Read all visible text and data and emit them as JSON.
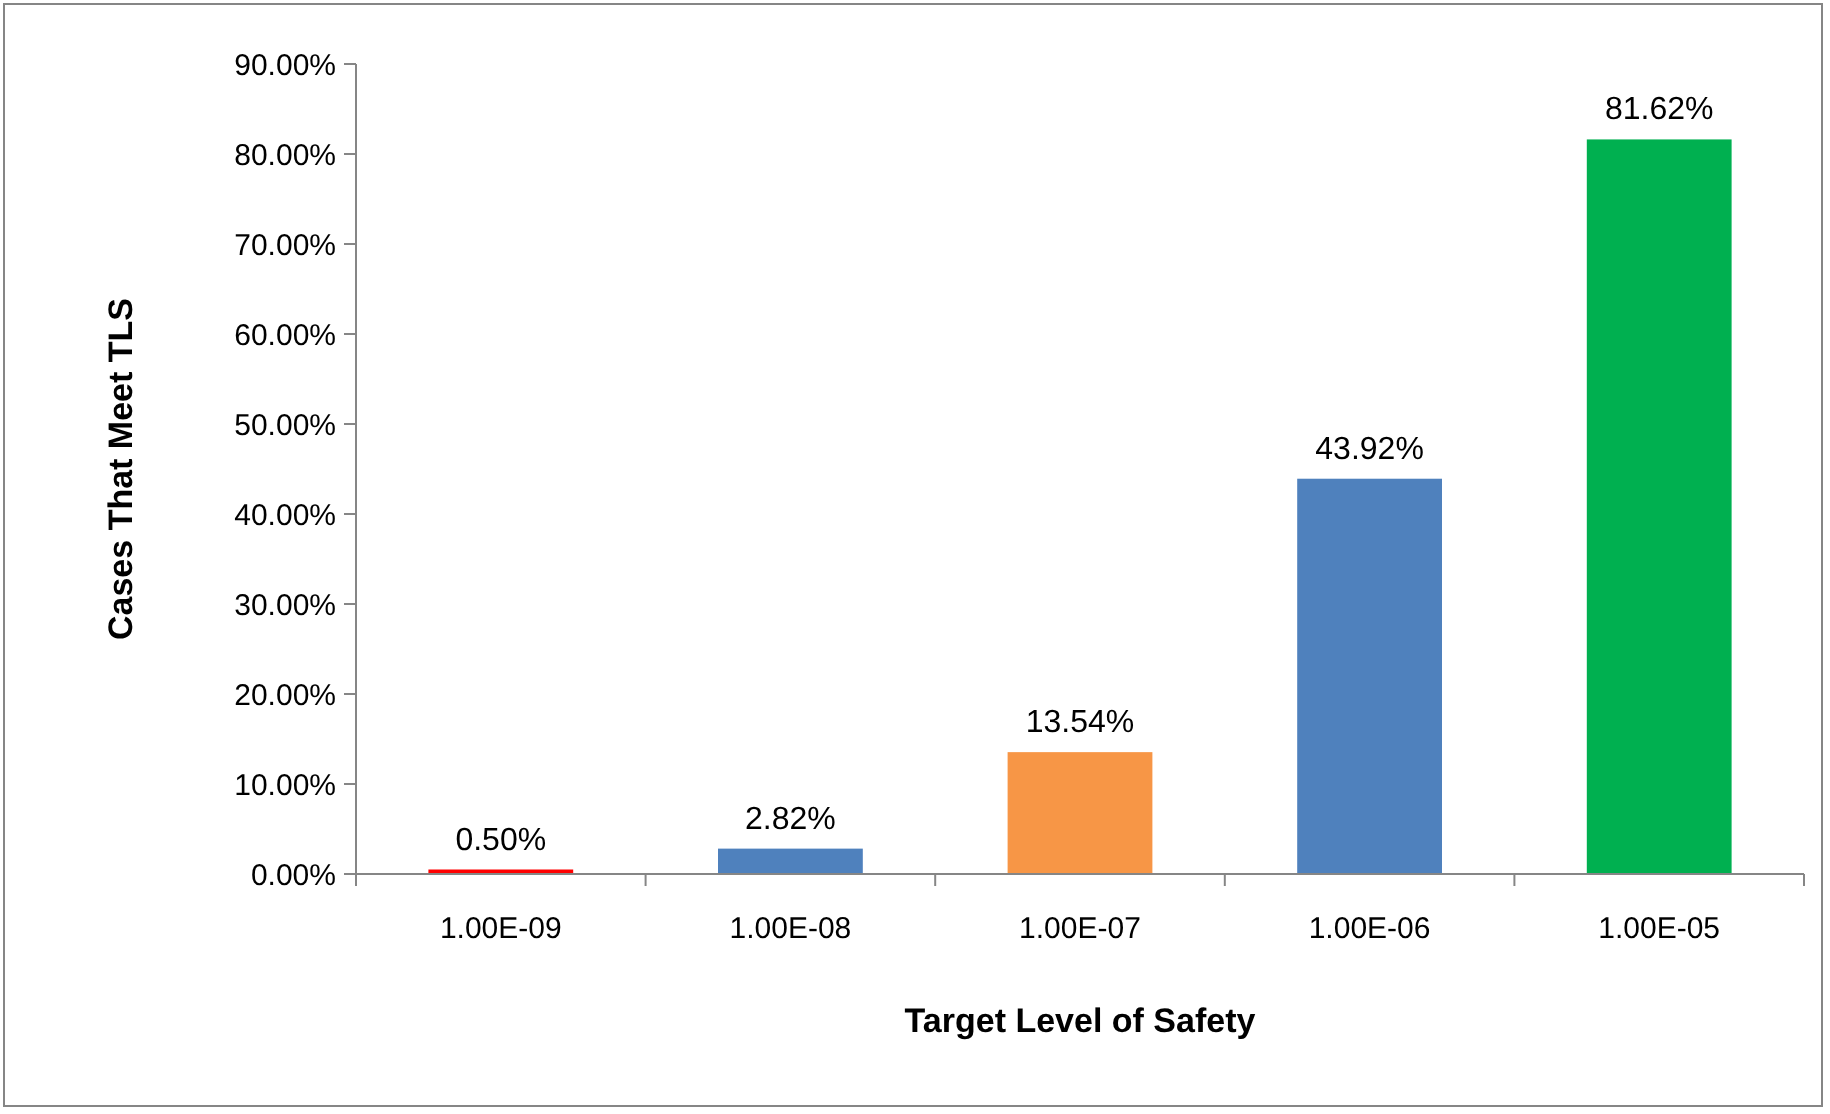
{
  "chart_data": {
    "type": "bar",
    "xlabel": "Target Level of Safety",
    "ylabel": "Cases That Meet TLS",
    "categories": [
      "1.00E-09",
      "1.00E-08",
      "1.00E-07",
      "1.00E-06",
      "1.00E-05"
    ],
    "values": [
      0.5,
      2.82,
      13.54,
      43.92,
      81.62
    ],
    "colors": [
      "#ff0000",
      "#4f81bd",
      "#f79646",
      "#4f81bd",
      "#00b050"
    ],
    "value_labels": [
      "0.50%",
      "2.82%",
      "13.54%",
      "43.92%",
      "81.62%"
    ],
    "ylim": [
      0,
      90
    ],
    "yticks": [
      {
        "value": 0,
        "label": "0.00%"
      },
      {
        "value": 10,
        "label": "10.00%"
      },
      {
        "value": 20,
        "label": "20.00%"
      },
      {
        "value": 30,
        "label": "30.00%"
      },
      {
        "value": 40,
        "label": "40.00%"
      },
      {
        "value": 50,
        "label": "50.00%"
      },
      {
        "value": 60,
        "label": "60.00%"
      },
      {
        "value": 70,
        "label": "70.00%"
      },
      {
        "value": 80,
        "label": "80.00%"
      },
      {
        "value": 90,
        "label": "90.00%"
      }
    ],
    "grid": false
  }
}
